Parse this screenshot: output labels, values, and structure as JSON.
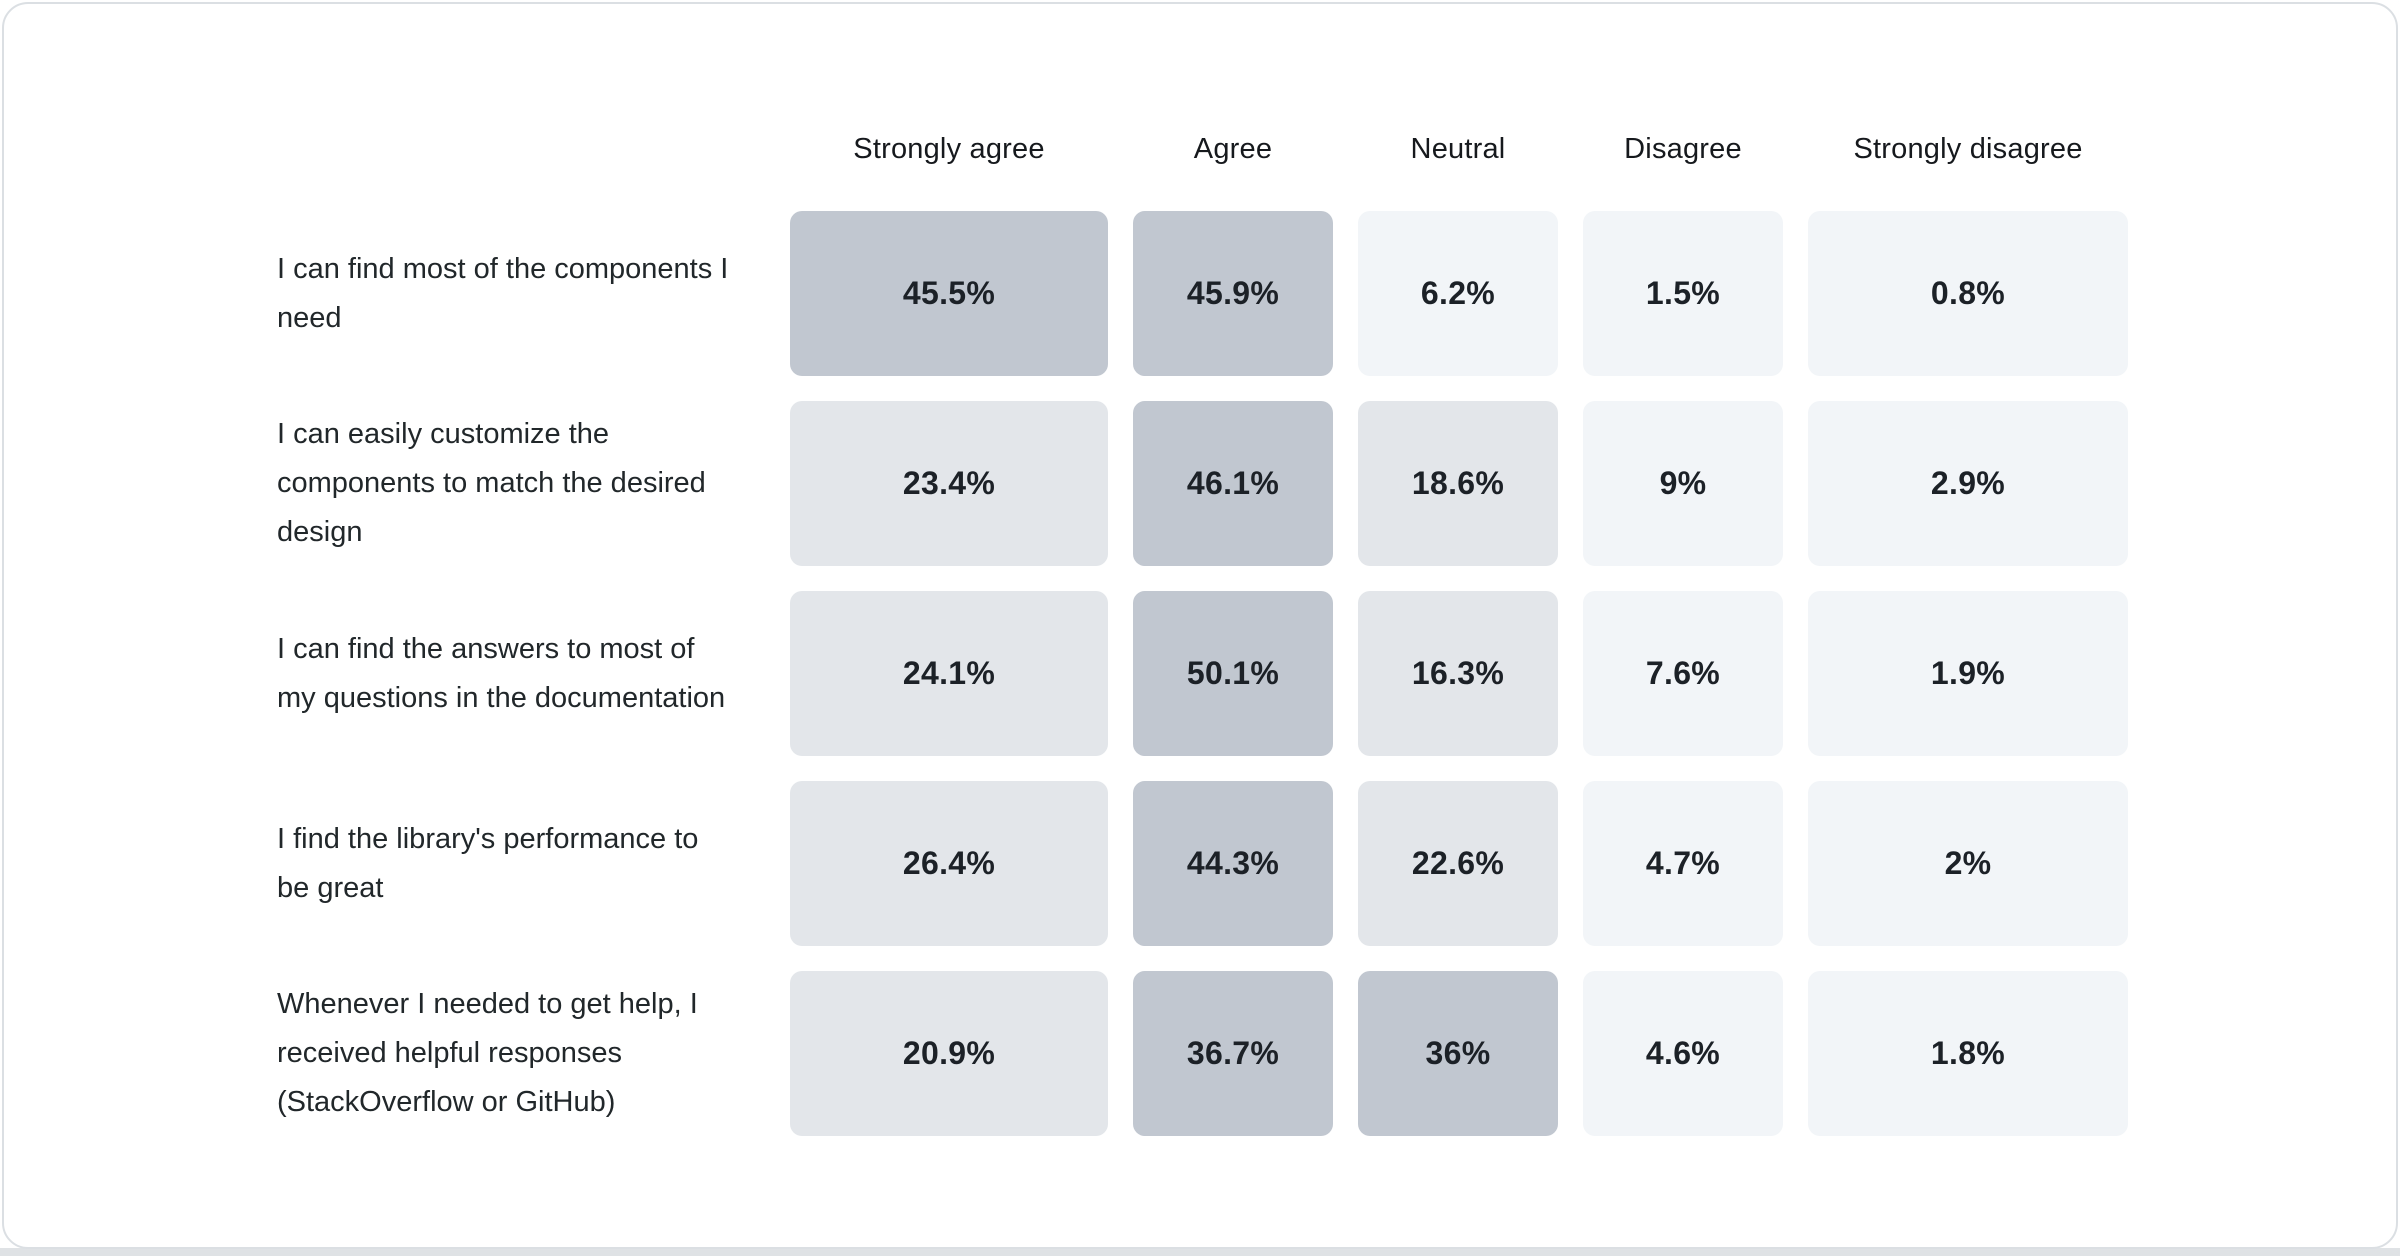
{
  "chart_data": {
    "type": "heatmap",
    "title": "",
    "columns": [
      "Strongly agree",
      "Agree",
      "Neutral",
      "Disagree",
      "Strongly disagree"
    ],
    "rows": [
      {
        "label": "I can find most of the components I need",
        "values": [
          45.5,
          45.9,
          6.2,
          1.5,
          0.8
        ],
        "display": [
          "45.5%",
          "45.9%",
          "6.2%",
          "1.5%",
          "0.8%"
        ]
      },
      {
        "label": "I can easily customize the components to match the desired design",
        "values": [
          23.4,
          46.1,
          18.6,
          9,
          2.9
        ],
        "display": [
          "23.4%",
          "46.1%",
          "18.6%",
          "9%",
          "2.9%"
        ]
      },
      {
        "label": "I can find the answers to most of my questions in the documentation",
        "values": [
          24.1,
          50.1,
          16.3,
          7.6,
          1.9
        ],
        "display": [
          "24.1%",
          "50.1%",
          "16.3%",
          "7.6%",
          "1.9%"
        ]
      },
      {
        "label": "I find the library's performance to be great",
        "values": [
          26.4,
          44.3,
          22.6,
          4.7,
          2
        ],
        "display": [
          "26.4%",
          "44.3%",
          "22.6%",
          "4.7%",
          "2%"
        ]
      },
      {
        "label": "Whenever I needed to get help, I received helpful responses (StackOverflow or GitHub)",
        "values": [
          20.9,
          36.7,
          36,
          4.6,
          1.8
        ],
        "display": [
          "20.9%",
          "36.7%",
          "36%",
          "4.6%",
          "1.8%"
        ]
      }
    ],
    "color_scale": {
      "bins": [
        {
          "max": 10,
          "color": "#f2f5f8"
        },
        {
          "max": 30,
          "color": "#e3e6ea"
        },
        {
          "max": 100,
          "color": "#c1c7d0"
        }
      ]
    },
    "layout": {
      "legend": "none",
      "grid": "off",
      "card_background": "#ffffff",
      "card_border": "#dbdfe3",
      "bottom_strip_color": "#dfe2e5",
      "header_text_color": "#16191d",
      "label_text_color": "#21272a",
      "value_text_color": "#1c2127"
    }
  }
}
